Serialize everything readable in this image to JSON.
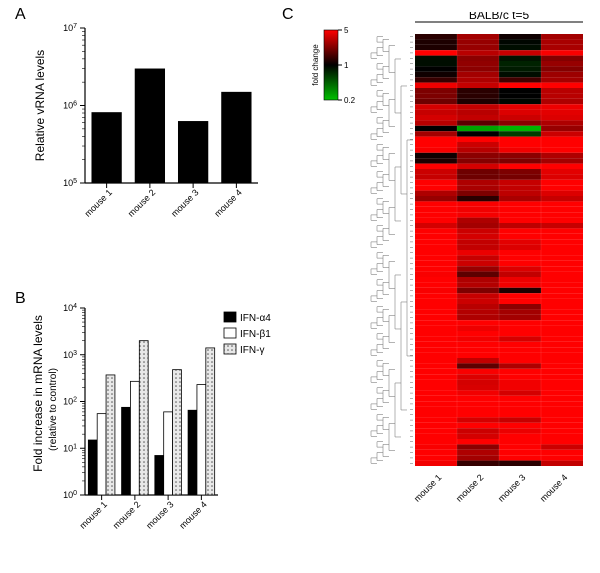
{
  "panels": {
    "A": "A",
    "B": "B",
    "C": "C"
  },
  "panelA": {
    "type": "bar",
    "title_ylabel": "Relative vRNA levels",
    "categories": [
      "mouse 1",
      "mouse 2",
      "mouse 3",
      "mouse 4"
    ],
    "values": [
      820000.0,
      3000000.0,
      630000.0,
      1500000.0
    ],
    "bar_color": "#000000",
    "ylim": [
      100000.0,
      10000000.0
    ],
    "yticks": [
      100000.0,
      1000000.0,
      10000000.0
    ],
    "ytick_labels": [
      "10",
      "10",
      "10"
    ],
    "ytick_exps": [
      "5",
      "6",
      "7"
    ],
    "label_fontsize": 12,
    "tick_fontsize": 9,
    "bar_width": 0.7,
    "background": "#ffffff"
  },
  "panelB": {
    "type": "grouped-bar",
    "ylabel": "Fold increase in mRNA levels",
    "ysub": "(relative to control)",
    "categories": [
      "mouse 1",
      "mouse 2",
      "mouse 3",
      "mouse 4"
    ],
    "series": [
      {
        "name": "IFN-α4",
        "fill": "#000000",
        "pattern": "solid",
        "values": [
          15,
          75,
          7,
          65
        ]
      },
      {
        "name": "IFN-β1",
        "fill": "#ffffff",
        "pattern": "outline",
        "values": [
          55,
          270,
          60,
          230
        ]
      },
      {
        "name": "IFN-γ",
        "fill": "#d9d9d9",
        "pattern": "dots",
        "values": [
          370,
          2000,
          480,
          1400
        ]
      }
    ],
    "ylim": [
      1,
      10000.0
    ],
    "yticks": [
      1,
      10,
      100,
      1000,
      10000
    ],
    "ytick_labels": [
      "10",
      "10",
      "10",
      "10",
      "10"
    ],
    "ytick_exps": [
      "0",
      "1",
      "2",
      "3",
      "4"
    ],
    "label_fontsize": 12,
    "tick_fontsize": 9,
    "bar_group_width": 0.8,
    "background": "#ffffff",
    "legend": [
      "IFN-α4",
      "IFN-β1",
      "IFN-γ"
    ]
  },
  "panelC": {
    "type": "heatmap",
    "title": "BALB/c t=5",
    "columns": [
      "mouse 1",
      "mouse 2",
      "mouse 3",
      "mouse 4"
    ],
    "colorbar": {
      "label": "fold change",
      "ticks": [
        0.2,
        1,
        5
      ],
      "min": 0.2,
      "max": 5,
      "stops": [
        [
          0,
          "#00c000"
        ],
        [
          0.5,
          "#000000"
        ],
        [
          1,
          "#ff0000"
        ]
      ]
    },
    "rows": [
      [
        1.3,
        2.8,
        1.1,
        2.8
      ],
      [
        1.2,
        2.6,
        0.95,
        2.9
      ],
      [
        1.2,
        2.6,
        0.9,
        2.9
      ],
      [
        5,
        3.2,
        3.5,
        4.8
      ],
      [
        0.9,
        2.4,
        0.85,
        2.3
      ],
      [
        0.9,
        2.5,
        0.75,
        2.6
      ],
      [
        1.0,
        2.4,
        0.8,
        2.3
      ],
      [
        1.1,
        2.8,
        0.9,
        2.7
      ],
      [
        1.4,
        3.0,
        1.5,
        2.8
      ],
      [
        4.5,
        3.5,
        5,
        5
      ],
      [
        2.2,
        1.3,
        1.0,
        3.2
      ],
      [
        2.2,
        1.3,
        1.0,
        3.2
      ],
      [
        2.0,
        1.2,
        0.95,
        3.0
      ],
      [
        3.8,
        3.4,
        4.2,
        4.5
      ],
      [
        3.5,
        3.2,
        4.0,
        4.2
      ],
      [
        3.8,
        3.4,
        3.6,
        4.0
      ],
      [
        3.2,
        1.8,
        2.4,
        3.0
      ],
      [
        1.0,
        0.25,
        0.22,
        2.6
      ],
      [
        2.8,
        1.0,
        0.6,
        3.6
      ],
      [
        5,
        5,
        5,
        5
      ],
      [
        5,
        3.6,
        5,
        5
      ],
      [
        4.8,
        3.2,
        4.6,
        5
      ],
      [
        1.1,
        2.4,
        2.4,
        3.0
      ],
      [
        1.2,
        2.3,
        2.2,
        2.8
      ],
      [
        5,
        3.8,
        5,
        5
      ],
      [
        3.6,
        2.0,
        2.2,
        4.2
      ],
      [
        3.5,
        2.0,
        2.1,
        4.0
      ],
      [
        5,
        3.0,
        3.5,
        5
      ],
      [
        5,
        2.9,
        3.4,
        5
      ],
      [
        3.0,
        2.2,
        3.3,
        4.0
      ],
      [
        2.6,
        1.3,
        2.9,
        3.5
      ],
      [
        5,
        4.8,
        5,
        5
      ],
      [
        5,
        4.6,
        5,
        5
      ],
      [
        5,
        4.7,
        5,
        5
      ],
      [
        5,
        3.0,
        5,
        5
      ],
      [
        3.8,
        2.8,
        3.3,
        3.5
      ],
      [
        5,
        3.6,
        5,
        5
      ],
      [
        5,
        3.8,
        5,
        5
      ],
      [
        5,
        3.4,
        4.2,
        5
      ],
      [
        5,
        3.4,
        4.0,
        5
      ],
      [
        5,
        4.4,
        5,
        5
      ],
      [
        5,
        3.5,
        5,
        5
      ],
      [
        5,
        3.6,
        5,
        5
      ],
      [
        5,
        2.6,
        4.0,
        5
      ],
      [
        4.8,
        1.8,
        3.4,
        5
      ],
      [
        5,
        3.0,
        4.5,
        5
      ],
      [
        5,
        3.1,
        4.6,
        5
      ],
      [
        4.8,
        2.2,
        1.2,
        5
      ],
      [
        5,
        3.5,
        5,
        5
      ],
      [
        5,
        3.6,
        5,
        5
      ],
      [
        5,
        3.2,
        2.4,
        5
      ],
      [
        5,
        3.1,
        2.8,
        5
      ],
      [
        5,
        3.0,
        2.8,
        5
      ],
      [
        5,
        5,
        5,
        5
      ],
      [
        5,
        4.5,
        5,
        5
      ],
      [
        5,
        5,
        5,
        5
      ],
      [
        5,
        4.6,
        3.8,
        5
      ],
      [
        5,
        5,
        5,
        5
      ],
      [
        5,
        5,
        5,
        5
      ],
      [
        5,
        5,
        5,
        5
      ],
      [
        5,
        3.4,
        5,
        5
      ],
      [
        5,
        1.8,
        3.0,
        5
      ],
      [
        5,
        4.8,
        5,
        5
      ],
      [
        5,
        4.0,
        5,
        5
      ],
      [
        5,
        3.8,
        4.6,
        5
      ],
      [
        5,
        3.9,
        4.6,
        5
      ],
      [
        5,
        4.6,
        3.8,
        5
      ],
      [
        5,
        5,
        5,
        5
      ],
      [
        5,
        5,
        5,
        5
      ],
      [
        5,
        5,
        5,
        5
      ],
      [
        5,
        5,
        5,
        5
      ],
      [
        5,
        3.8,
        3.5,
        5
      ],
      [
        5,
        5,
        5,
        5
      ],
      [
        5,
        3.6,
        4.4,
        5
      ],
      [
        5,
        3.8,
        5,
        5
      ],
      [
        5,
        5,
        5,
        5
      ],
      [
        4.8,
        2.4,
        5,
        3.6
      ],
      [
        5,
        3.0,
        5,
        5
      ],
      [
        5,
        2.8,
        5,
        5
      ],
      [
        4.6,
        1.4,
        1.3,
        3.4
      ]
    ],
    "label_fontsize": 12,
    "tick_fontsize": 9,
    "background": "#ffffff",
    "dendro_color": "#808080"
  }
}
